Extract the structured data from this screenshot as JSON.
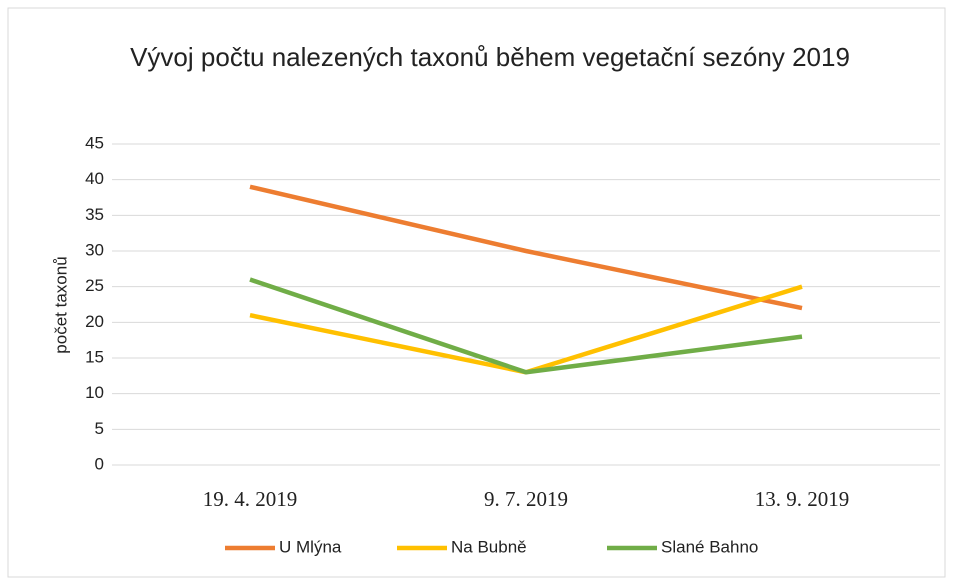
{
  "chart_data": {
    "type": "line",
    "title": "Vývoj počtu nalezených taxonů během vegetační sezóny 2019",
    "y_label": "počet taxonů",
    "categories": [
      "19. 4. 2019",
      "9. 7. 2019",
      "13. 9. 2019"
    ],
    "series": [
      {
        "name": "U Mlýna",
        "color": "#ed7d31",
        "values": [
          39,
          30,
          22
        ]
      },
      {
        "name": "Na Bubně",
        "color": "#ffc000",
        "values": [
          21,
          13,
          25
        ]
      },
      {
        "name": "Slané Bahno",
        "color": "#70ad47",
        "values": [
          26,
          13,
          18
        ]
      }
    ],
    "ylim": [
      0,
      45
    ],
    "yticks": [
      0,
      5,
      10,
      15,
      20,
      25,
      30,
      35,
      40,
      45
    ],
    "grid": true,
    "legend": "bottom"
  }
}
